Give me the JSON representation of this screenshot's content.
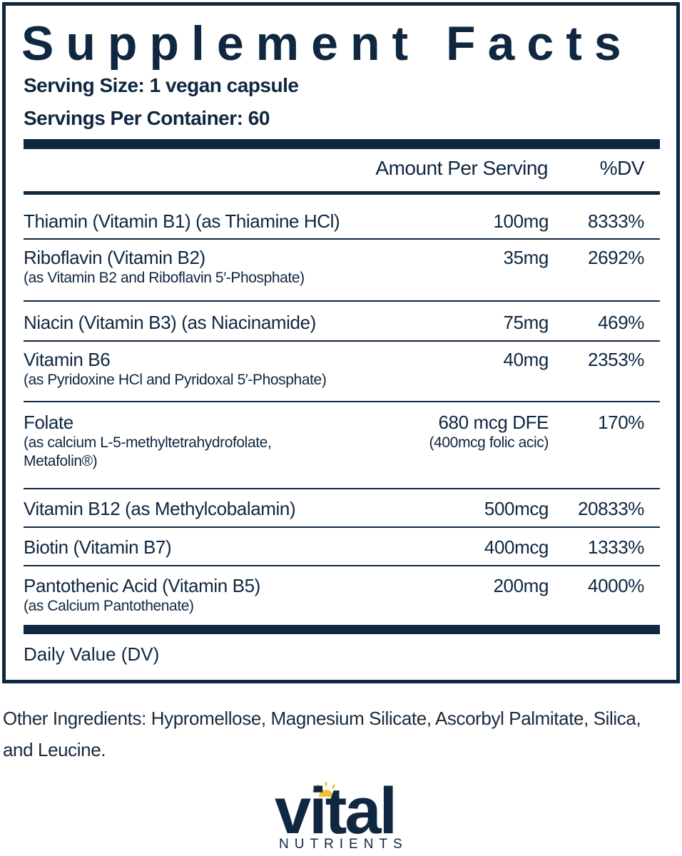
{
  "title": "Supplement Facts",
  "serving_size": "Serving Size: 1 vegan capsule",
  "servings_per_container": "Servings Per Container: 60",
  "header": {
    "amount": "Amount Per Serving",
    "dv": "%DV"
  },
  "rows": [
    {
      "name": "Thiamin (Vitamin B1) (as Thiamine HCl)",
      "sub": "",
      "amount": "100mg",
      "amount_sub": "",
      "dv": "8333%"
    },
    {
      "name": "Riboflavin (Vitamin B2)",
      "sub": "(as Vitamin B2 and Riboflavin 5′-Phosphate)",
      "amount": "35mg",
      "amount_sub": "",
      "dv": "2692%"
    },
    {
      "name": "Niacin (Vitamin B3) (as Niacinamide)",
      "sub": "",
      "amount": "75mg",
      "amount_sub": "",
      "dv": "469%"
    },
    {
      "name": "Vitamin B6",
      "sub": "(as Pyridoxine HCl and Pyridoxal 5′-Phosphate)",
      "amount": "40mg",
      "amount_sub": "",
      "dv": "2353%"
    },
    {
      "name": "Folate",
      "sub": "(as calcium L-5-methyltetrahydrofolate,",
      "sub2": "Metafolin®)",
      "amount": "680 mcg  DFE",
      "amount_sub": "(400mcg folic acic)",
      "dv": "170%"
    },
    {
      "name": "Vitamin B12 (as Methylcobalamin)",
      "sub": "",
      "amount": "500mcg",
      "amount_sub": "",
      "dv": "20833%"
    },
    {
      "name": "Biotin (Vitamin B7)",
      "sub": "",
      "amount": "400mcg",
      "amount_sub": "",
      "dv": "1333%"
    },
    {
      "name": "Pantothenic Acid (Vitamin B5)",
      "sub": "(as Calcium Pantothenate)",
      "amount": "200mg",
      "amount_sub": "",
      "dv": "4000%"
    }
  ],
  "footnote": "Daily Value (DV)",
  "other_ingredients": "Other Ingredients: Hypromellose, Magnesium Silicate, Ascorbyl Palmitate, Silica, and Leucine.",
  "logo": {
    "word": "vital",
    "tagline": "NUTRIENTS"
  },
  "colors": {
    "navy": "#0f2740",
    "sun": "#f2c230"
  }
}
